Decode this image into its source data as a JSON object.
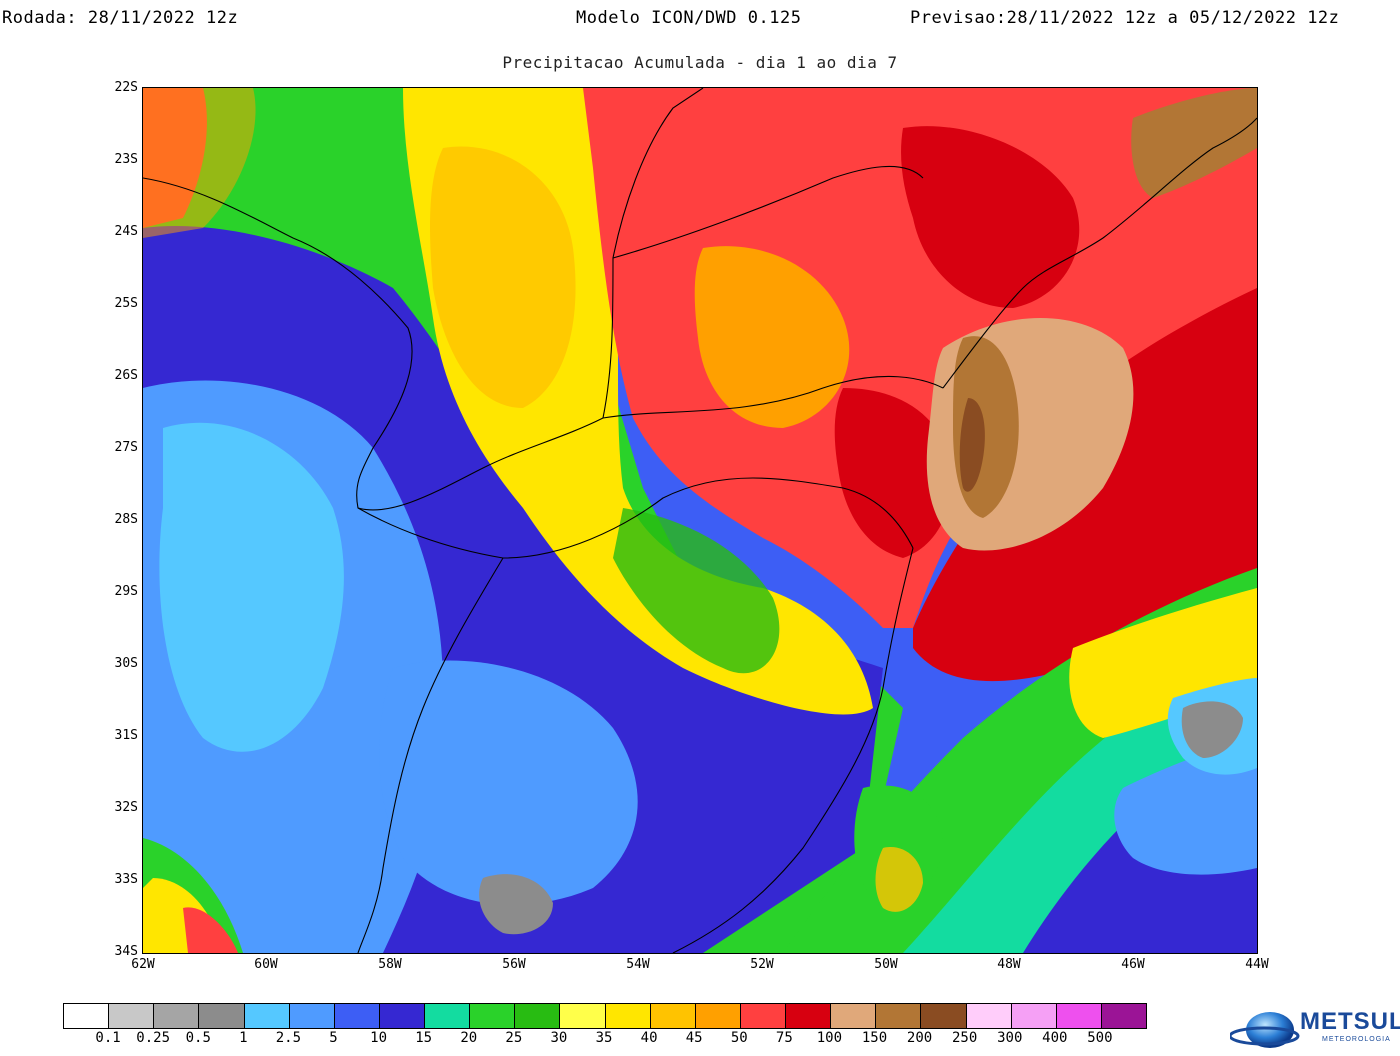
{
  "header": {
    "run_label": "Rodada:",
    "run_value": "28/11/2022 12z",
    "model": "Modelo ICON/DWD 0.125",
    "forecast_label": "Previsao:",
    "forecast_value": "28/11/2022 12z a 05/12/2022 12z",
    "subtitle": "Precipitacao Acumulada - dia 1 ao dia 7"
  },
  "map": {
    "lat_labels": [
      "22S",
      "23S",
      "24S",
      "25S",
      "26S",
      "27S",
      "28S",
      "29S",
      "30S",
      "31S",
      "32S",
      "33S",
      "34S"
    ],
    "lon_labels": [
      "62W",
      "60W",
      "58W",
      "56W",
      "54W",
      "52W",
      "50W",
      "48W",
      "46W",
      "44W"
    ]
  },
  "colorbar": {
    "colors": [
      "#ffffff",
      "#c8c8c8",
      "#a5a5a5",
      "#8c8c8c",
      "#55c8ff",
      "#4f9bff",
      "#3d5ef5",
      "#3528d2",
      "#13dca0",
      "#2ad22a",
      "#28bc12",
      "#ffff4a",
      "#ffe600",
      "#ffc300",
      "#ffa000",
      "#ff4040",
      "#d70010",
      "#e0a87a",
      "#b27635",
      "#8a4c22",
      "#ffcdfa",
      "#f5a0f5",
      "#ee50ee",
      "#9b1496"
    ],
    "labels": [
      "0.1",
      "0.25",
      "0.5",
      "1",
      "2.5",
      "5",
      "10",
      "15",
      "20",
      "25",
      "30",
      "35",
      "40",
      "45",
      "50",
      "75",
      "100",
      "150",
      "200",
      "250",
      "300",
      "400",
      "500"
    ]
  },
  "logo": {
    "name": "METSUL",
    "sub": "METEOROLOGIA"
  }
}
